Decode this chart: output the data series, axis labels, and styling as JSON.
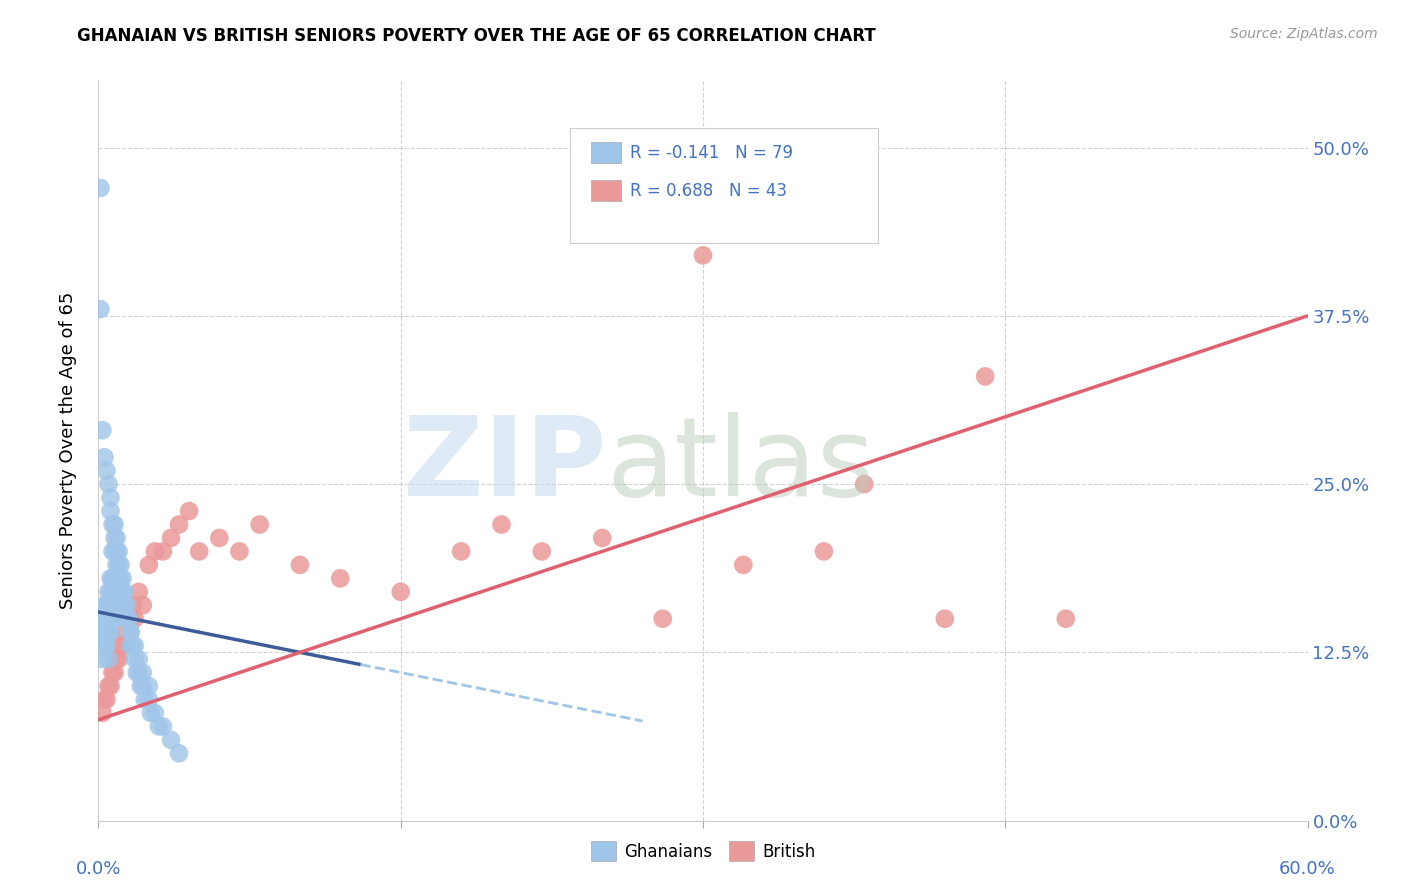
{
  "title": "GHANAIAN VS BRITISH SENIORS POVERTY OVER THE AGE OF 65 CORRELATION CHART",
  "source": "Source: ZipAtlas.com",
  "ylabel": "Seniors Poverty Over the Age of 65",
  "ytick_labels": [
    "0.0%",
    "12.5%",
    "25.0%",
    "37.5%",
    "50.0%"
  ],
  "ytick_values": [
    0.0,
    0.125,
    0.25,
    0.375,
    0.5
  ],
  "xmin": 0.0,
  "xmax": 0.6,
  "ymin": 0.0,
  "ymax": 0.55,
  "ghanaian_color": "#9fc5e8",
  "british_color": "#ea9999",
  "ghanaian_line_color": "#3d5a99",
  "ghanaian_dash_color": "#9fc5e8",
  "british_line_color": "#e06070",
  "legend_bottom_1": "Ghanaians",
  "legend_bottom_2": "British",
  "watermark_zip": "ZIP",
  "watermark_atlas": "atlas",
  "ghanaian_x": [
    0.001,
    0.001,
    0.002,
    0.002,
    0.002,
    0.002,
    0.003,
    0.003,
    0.003,
    0.003,
    0.004,
    0.004,
    0.004,
    0.004,
    0.005,
    0.005,
    0.005,
    0.005,
    0.005,
    0.006,
    0.006,
    0.006,
    0.006,
    0.007,
    0.007,
    0.007,
    0.007,
    0.008,
    0.008,
    0.008,
    0.009,
    0.009,
    0.009,
    0.01,
    0.01,
    0.01,
    0.011,
    0.011,
    0.012,
    0.012,
    0.013,
    0.013,
    0.014,
    0.015,
    0.016,
    0.016,
    0.017,
    0.018,
    0.019,
    0.02,
    0.021,
    0.022,
    0.023,
    0.025,
    0.026,
    0.028,
    0.03,
    0.032,
    0.036,
    0.04,
    0.002,
    0.003,
    0.004,
    0.005,
    0.006,
    0.006,
    0.007,
    0.008,
    0.009,
    0.01,
    0.011,
    0.012,
    0.013,
    0.014,
    0.016,
    0.018,
    0.02,
    0.022,
    0.025
  ],
  "ghanaian_y": [
    0.47,
    0.38,
    0.15,
    0.14,
    0.13,
    0.12,
    0.16,
    0.15,
    0.14,
    0.13,
    0.16,
    0.15,
    0.14,
    0.13,
    0.17,
    0.16,
    0.15,
    0.14,
    0.12,
    0.18,
    0.17,
    0.16,
    0.14,
    0.2,
    0.18,
    0.16,
    0.15,
    0.22,
    0.2,
    0.18,
    0.21,
    0.19,
    0.17,
    0.2,
    0.18,
    0.16,
    0.19,
    0.17,
    0.18,
    0.16,
    0.17,
    0.15,
    0.16,
    0.15,
    0.14,
    0.13,
    0.13,
    0.12,
    0.11,
    0.11,
    0.1,
    0.1,
    0.09,
    0.09,
    0.08,
    0.08,
    0.07,
    0.07,
    0.06,
    0.05,
    0.29,
    0.27,
    0.26,
    0.25,
    0.24,
    0.23,
    0.22,
    0.21,
    0.2,
    0.19,
    0.18,
    0.17,
    0.16,
    0.15,
    0.14,
    0.13,
    0.12,
    0.11,
    0.1
  ],
  "british_x": [
    0.002,
    0.003,
    0.004,
    0.005,
    0.006,
    0.007,
    0.008,
    0.009,
    0.01,
    0.011,
    0.012,
    0.013,
    0.015,
    0.016,
    0.017,
    0.018,
    0.02,
    0.022,
    0.025,
    0.028,
    0.032,
    0.036,
    0.04,
    0.045,
    0.05,
    0.06,
    0.07,
    0.08,
    0.1,
    0.12,
    0.15,
    0.18,
    0.2,
    0.22,
    0.25,
    0.28,
    0.32,
    0.36,
    0.42,
    0.48,
    0.3,
    0.44,
    0.38
  ],
  "british_y": [
    0.08,
    0.09,
    0.09,
    0.1,
    0.1,
    0.11,
    0.11,
    0.12,
    0.12,
    0.13,
    0.13,
    0.14,
    0.15,
    0.15,
    0.16,
    0.15,
    0.17,
    0.16,
    0.19,
    0.2,
    0.2,
    0.21,
    0.22,
    0.23,
    0.2,
    0.21,
    0.2,
    0.22,
    0.19,
    0.18,
    0.17,
    0.2,
    0.22,
    0.2,
    0.21,
    0.15,
    0.19,
    0.2,
    0.15,
    0.15,
    0.42,
    0.33,
    0.25
  ],
  "gh_line_x0": 0.0,
  "gh_line_x1": 0.13,
  "gh_line_x1_dash": 0.27,
  "gh_line_y_intercept": 0.155,
  "gh_line_slope": -0.3,
  "br_line_x0": 0.0,
  "br_line_x1": 0.6,
  "br_line_y0": 0.075,
  "br_line_y1": 0.375
}
